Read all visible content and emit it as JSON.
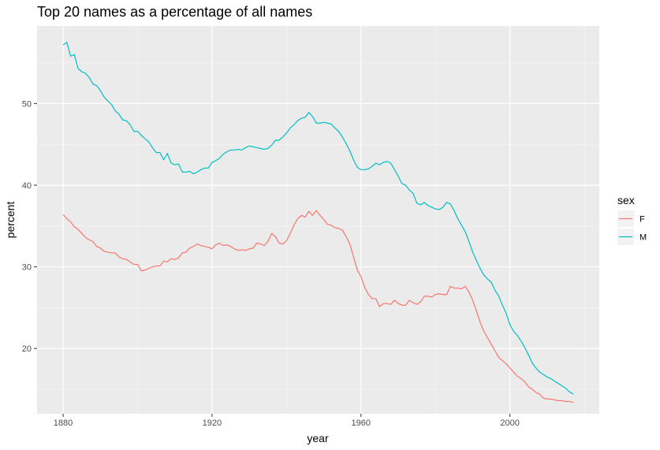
{
  "chart_data": {
    "type": "line",
    "title": "Top 20 names as a percentage of all names",
    "xlabel": "year",
    "ylabel": "percent",
    "xlim": [
      1873,
      2024
    ],
    "ylim": [
      12,
      59.5
    ],
    "x_ticks": [
      1880,
      1920,
      1960,
      2000
    ],
    "y_ticks": [
      20,
      30,
      40,
      50
    ],
    "x_ticks_minor": [
      1900,
      1940,
      1980,
      2020
    ],
    "y_ticks_minor": [
      15,
      25,
      35,
      45,
      55
    ],
    "grid": true,
    "legend": {
      "title": "sex",
      "position": "right"
    },
    "series": [
      {
        "name": "F",
        "color": "#F8766D",
        "points": [
          [
            1880,
            36.4
          ],
          [
            1881,
            35.9
          ],
          [
            1882,
            35.5
          ],
          [
            1883,
            34.9
          ],
          [
            1884,
            34.6
          ],
          [
            1885,
            34.1
          ],
          [
            1886,
            33.6
          ],
          [
            1887,
            33.3
          ],
          [
            1888,
            33.1
          ],
          [
            1889,
            32.5
          ],
          [
            1890,
            32.3
          ],
          [
            1891,
            31.9
          ],
          [
            1892,
            31.8
          ],
          [
            1893,
            31.7
          ],
          [
            1894,
            31.7
          ],
          [
            1895,
            31.2
          ],
          [
            1896,
            31.0
          ],
          [
            1897,
            30.9
          ],
          [
            1898,
            30.6
          ],
          [
            1899,
            30.3
          ],
          [
            1900,
            30.3
          ],
          [
            1901,
            29.5
          ],
          [
            1902,
            29.6
          ],
          [
            1903,
            29.8
          ],
          [
            1904,
            30.0
          ],
          [
            1905,
            30.1
          ],
          [
            1906,
            30.1
          ],
          [
            1907,
            30.7
          ],
          [
            1908,
            30.6
          ],
          [
            1909,
            31.0
          ],
          [
            1910,
            30.9
          ],
          [
            1911,
            31.1
          ],
          [
            1912,
            31.7
          ],
          [
            1913,
            31.8
          ],
          [
            1914,
            32.3
          ],
          [
            1915,
            32.5
          ],
          [
            1916,
            32.8
          ],
          [
            1917,
            32.6
          ],
          [
            1918,
            32.5
          ],
          [
            1919,
            32.4
          ],
          [
            1920,
            32.2
          ],
          [
            1921,
            32.7
          ],
          [
            1922,
            32.9
          ],
          [
            1923,
            32.6
          ],
          [
            1924,
            32.7
          ],
          [
            1925,
            32.5
          ],
          [
            1926,
            32.2
          ],
          [
            1927,
            32.0
          ],
          [
            1928,
            32.1
          ],
          [
            1929,
            32.0
          ],
          [
            1930,
            32.2
          ],
          [
            1931,
            32.3
          ],
          [
            1932,
            32.9
          ],
          [
            1933,
            32.8
          ],
          [
            1934,
            32.6
          ],
          [
            1935,
            33.1
          ],
          [
            1936,
            34.1
          ],
          [
            1937,
            33.7
          ],
          [
            1938,
            32.9
          ],
          [
            1939,
            32.8
          ],
          [
            1940,
            33.2
          ],
          [
            1941,
            34.1
          ],
          [
            1942,
            35.1
          ],
          [
            1943,
            35.9
          ],
          [
            1944,
            36.3
          ],
          [
            1945,
            36.1
          ],
          [
            1946,
            36.8
          ],
          [
            1947,
            36.3
          ],
          [
            1948,
            36.9
          ],
          [
            1949,
            36.3
          ],
          [
            1950,
            35.8
          ],
          [
            1951,
            35.2
          ],
          [
            1952,
            35.1
          ],
          [
            1953,
            34.8
          ],
          [
            1954,
            34.7
          ],
          [
            1955,
            34.5
          ],
          [
            1956,
            33.7
          ],
          [
            1957,
            32.8
          ],
          [
            1958,
            31.2
          ],
          [
            1959,
            29.6
          ],
          [
            1960,
            28.8
          ],
          [
            1961,
            27.5
          ],
          [
            1962,
            26.6
          ],
          [
            1963,
            26.1
          ],
          [
            1964,
            26.1
          ],
          [
            1965,
            25.1
          ],
          [
            1966,
            25.5
          ],
          [
            1967,
            25.5
          ],
          [
            1968,
            25.4
          ],
          [
            1969,
            25.9
          ],
          [
            1970,
            25.5
          ],
          [
            1971,
            25.3
          ],
          [
            1972,
            25.3
          ],
          [
            1973,
            25.9
          ],
          [
            1974,
            25.6
          ],
          [
            1975,
            25.4
          ],
          [
            1976,
            25.7
          ],
          [
            1977,
            26.4
          ],
          [
            1978,
            26.4
          ],
          [
            1979,
            26.3
          ],
          [
            1980,
            26.6
          ],
          [
            1981,
            26.7
          ],
          [
            1982,
            26.6
          ],
          [
            1983,
            26.6
          ],
          [
            1984,
            27.6
          ],
          [
            1985,
            27.4
          ],
          [
            1986,
            27.4
          ],
          [
            1987,
            27.3
          ],
          [
            1988,
            27.6
          ],
          [
            1989,
            26.9
          ],
          [
            1990,
            25.9
          ],
          [
            1991,
            24.6
          ],
          [
            1992,
            23.2
          ],
          [
            1993,
            22.1
          ],
          [
            1994,
            21.3
          ],
          [
            1995,
            20.5
          ],
          [
            1996,
            19.7
          ],
          [
            1997,
            18.9
          ],
          [
            1998,
            18.5
          ],
          [
            1999,
            18.1
          ],
          [
            2000,
            17.6
          ],
          [
            2001,
            17.1
          ],
          [
            2002,
            16.6
          ],
          [
            2003,
            16.3
          ],
          [
            2004,
            15.9
          ],
          [
            2005,
            15.3
          ],
          [
            2006,
            15.0
          ],
          [
            2007,
            14.6
          ],
          [
            2008,
            14.4
          ],
          [
            2009,
            13.9
          ],
          [
            2010,
            13.8
          ],
          [
            2011,
            13.8
          ],
          [
            2012,
            13.7
          ],
          [
            2013,
            13.6
          ],
          [
            2014,
            13.6
          ],
          [
            2015,
            13.5
          ],
          [
            2016,
            13.5
          ],
          [
            2017,
            13.4
          ]
        ]
      },
      {
        "name": "M",
        "color": "#00BFC4",
        "points": [
          [
            1880,
            57.2
          ],
          [
            1881,
            57.5
          ],
          [
            1882,
            55.8
          ],
          [
            1883,
            56.0
          ],
          [
            1884,
            54.3
          ],
          [
            1885,
            53.9
          ],
          [
            1886,
            53.7
          ],
          [
            1887,
            53.2
          ],
          [
            1888,
            52.4
          ],
          [
            1889,
            52.2
          ],
          [
            1890,
            51.6
          ],
          [
            1891,
            50.8
          ],
          [
            1892,
            50.3
          ],
          [
            1893,
            49.9
          ],
          [
            1894,
            49.1
          ],
          [
            1895,
            48.7
          ],
          [
            1896,
            48.0
          ],
          [
            1897,
            47.9
          ],
          [
            1898,
            47.4
          ],
          [
            1899,
            46.6
          ],
          [
            1900,
            46.6
          ],
          [
            1901,
            46.1
          ],
          [
            1902,
            45.7
          ],
          [
            1903,
            45.3
          ],
          [
            1904,
            44.6
          ],
          [
            1905,
            44.0
          ],
          [
            1906,
            44.0
          ],
          [
            1907,
            43.1
          ],
          [
            1908,
            43.9
          ],
          [
            1909,
            42.7
          ],
          [
            1910,
            42.5
          ],
          [
            1911,
            42.6
          ],
          [
            1912,
            41.6
          ],
          [
            1913,
            41.6
          ],
          [
            1914,
            41.7
          ],
          [
            1915,
            41.4
          ],
          [
            1916,
            41.6
          ],
          [
            1917,
            41.9
          ],
          [
            1918,
            42.1
          ],
          [
            1919,
            42.1
          ],
          [
            1920,
            42.8
          ],
          [
            1921,
            43.0
          ],
          [
            1922,
            43.3
          ],
          [
            1923,
            43.8
          ],
          [
            1924,
            44.1
          ],
          [
            1925,
            44.3
          ],
          [
            1926,
            44.3
          ],
          [
            1927,
            44.4
          ],
          [
            1928,
            44.3
          ],
          [
            1929,
            44.6
          ],
          [
            1930,
            44.8
          ],
          [
            1931,
            44.7
          ],
          [
            1932,
            44.6
          ],
          [
            1933,
            44.5
          ],
          [
            1934,
            44.4
          ],
          [
            1935,
            44.5
          ],
          [
            1936,
            44.9
          ],
          [
            1937,
            45.5
          ],
          [
            1938,
            45.5
          ],
          [
            1939,
            45.9
          ],
          [
            1940,
            46.4
          ],
          [
            1941,
            47.0
          ],
          [
            1942,
            47.4
          ],
          [
            1943,
            47.9
          ],
          [
            1944,
            48.2
          ],
          [
            1945,
            48.3
          ],
          [
            1946,
            48.9
          ],
          [
            1947,
            48.4
          ],
          [
            1948,
            47.6
          ],
          [
            1949,
            47.6
          ],
          [
            1950,
            47.7
          ],
          [
            1951,
            47.6
          ],
          [
            1952,
            47.5
          ],
          [
            1953,
            47.0
          ],
          [
            1954,
            46.6
          ],
          [
            1955,
            45.9
          ],
          [
            1956,
            45.1
          ],
          [
            1957,
            44.2
          ],
          [
            1958,
            43.1
          ],
          [
            1959,
            42.2
          ],
          [
            1960,
            41.9
          ],
          [
            1961,
            41.9
          ],
          [
            1962,
            42.0
          ],
          [
            1963,
            42.3
          ],
          [
            1964,
            42.7
          ],
          [
            1965,
            42.5
          ],
          [
            1966,
            42.8
          ],
          [
            1967,
            42.9
          ],
          [
            1968,
            42.7
          ],
          [
            1969,
            41.9
          ],
          [
            1970,
            41.1
          ],
          [
            1971,
            40.2
          ],
          [
            1972,
            40.0
          ],
          [
            1973,
            39.4
          ],
          [
            1974,
            39.0
          ],
          [
            1975,
            37.8
          ],
          [
            1976,
            37.6
          ],
          [
            1977,
            37.9
          ],
          [
            1978,
            37.5
          ],
          [
            1979,
            37.3
          ],
          [
            1980,
            37.1
          ],
          [
            1981,
            37.0
          ],
          [
            1982,
            37.3
          ],
          [
            1983,
            37.9
          ],
          [
            1984,
            37.7
          ],
          [
            1985,
            36.9
          ],
          [
            1986,
            35.9
          ],
          [
            1987,
            35.1
          ],
          [
            1988,
            34.3
          ],
          [
            1989,
            33.1
          ],
          [
            1990,
            31.8
          ],
          [
            1991,
            30.8
          ],
          [
            1992,
            29.8
          ],
          [
            1993,
            29.0
          ],
          [
            1994,
            28.5
          ],
          [
            1995,
            28.1
          ],
          [
            1996,
            27.1
          ],
          [
            1997,
            26.4
          ],
          [
            1998,
            25.3
          ],
          [
            1999,
            24.3
          ],
          [
            2000,
            22.9
          ],
          [
            2001,
            22.1
          ],
          [
            2002,
            21.6
          ],
          [
            2003,
            20.9
          ],
          [
            2004,
            20.1
          ],
          [
            2005,
            19.2
          ],
          [
            2006,
            18.2
          ],
          [
            2007,
            17.6
          ],
          [
            2008,
            17.1
          ],
          [
            2009,
            16.8
          ],
          [
            2010,
            16.5
          ],
          [
            2011,
            16.3
          ],
          [
            2012,
            16.0
          ],
          [
            2013,
            15.7
          ],
          [
            2014,
            15.4
          ],
          [
            2015,
            15.1
          ],
          [
            2016,
            14.7
          ],
          [
            2017,
            14.4
          ]
        ]
      }
    ]
  }
}
